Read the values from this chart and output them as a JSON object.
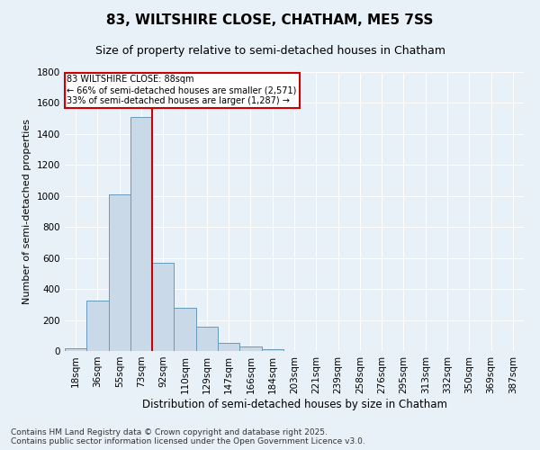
{
  "title1": "83, WILTSHIRE CLOSE, CHATHAM, ME5 7SS",
  "title2": "Size of property relative to semi-detached houses in Chatham",
  "xlabel": "Distribution of semi-detached houses by size in Chatham",
  "ylabel": "Number of semi-detached properties",
  "bin_labels": [
    "18sqm",
    "36sqm",
    "55sqm",
    "73sqm",
    "92sqm",
    "110sqm",
    "129sqm",
    "147sqm",
    "166sqm",
    "184sqm",
    "203sqm",
    "221sqm",
    "239sqm",
    "258sqm",
    "276sqm",
    "295sqm",
    "313sqm",
    "332sqm",
    "350sqm",
    "369sqm",
    "387sqm"
  ],
  "bar_values": [
    15,
    325,
    1010,
    1510,
    570,
    280,
    155,
    50,
    30,
    10,
    0,
    0,
    0,
    0,
    0,
    0,
    0,
    0,
    0,
    0,
    0
  ],
  "bar_color": "#c9d9e8",
  "bar_edge_color": "#6699bb",
  "annotation_text_line1": "83 WILTSHIRE CLOSE: 88sqm",
  "annotation_text_line2": "← 66% of semi-detached houses are smaller (2,571)",
  "annotation_text_line3": "33% of semi-detached houses are larger (1,287) →",
  "annotation_box_color": "#ffffff",
  "annotation_box_edge": "#cc0000",
  "vertical_line_color": "#cc0000",
  "vertical_line_x": 3.5,
  "ylim": [
    0,
    1800
  ],
  "yticks": [
    0,
    200,
    400,
    600,
    800,
    1000,
    1200,
    1400,
    1600,
    1800
  ],
  "footnote": "Contains HM Land Registry data © Crown copyright and database right 2025.\nContains public sector information licensed under the Open Government Licence v3.0.",
  "background_color": "#e8f0f8",
  "plot_bg_color": "#e8f0f8",
  "grid_color": "#ffffff",
  "title1_fontsize": 11,
  "title2_fontsize": 9,
  "xlabel_fontsize": 8.5,
  "ylabel_fontsize": 8,
  "tick_fontsize": 7.5,
  "footnote_fontsize": 6.5
}
